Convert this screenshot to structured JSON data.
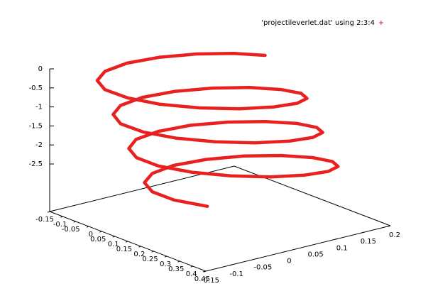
{
  "chart_data": {
    "type": "scatter3d",
    "legend": "top-right",
    "xlim": [
      -0.15,
      0.45
    ],
    "xticks": [
      -0.15,
      -0.1,
      -0.05,
      0,
      0.05,
      0.1,
      0.15,
      0.2,
      0.25,
      0.3,
      0.35,
      0.4,
      0.45
    ],
    "ylim": [
      -0.15,
      0.2
    ],
    "yticks": [
      -0.15,
      -0.1,
      -0.05,
      0,
      0.05,
      0.1,
      0.15,
      0.2
    ],
    "zlim": [
      -3.75,
      0
    ],
    "zticks": [
      0,
      -0.5,
      -1,
      -1.5,
      -2,
      -2.5
    ],
    "series": [
      {
        "name": "'projectileverlet.dat' using 2:3:4",
        "color": "#e82020",
        "x": [
          -0.001,
          -0.072,
          -0.136,
          -0.184,
          -0.208,
          -0.203,
          -0.17,
          -0.114,
          -0.042,
          0.035,
          0.105,
          0.159,
          0.188,
          0.189,
          0.162,
          0.111,
          0.045,
          -0.026,
          -0.09,
          -0.138,
          -0.162,
          -0.157,
          -0.125,
          -0.068,
          0.004,
          0.08,
          0.15,
          0.204,
          0.234,
          0.235,
          0.208,
          0.157,
          0.091,
          0.02,
          -0.045,
          -0.093,
          -0.116,
          -0.112,
          -0.079,
          -0.023,
          0.049,
          0.126,
          0.196,
          0.25,
          0.279,
          0.28,
          0.253,
          0.203,
          0.137,
          0.066,
          0.001,
          -0.047,
          -0.071,
          -0.066,
          -0.033,
          0.023,
          0.095,
          0.172
        ],
        "y": [
          0.185,
          0.161,
          0.122,
          0.074,
          0.025,
          -0.019,
          -0.05,
          -0.063,
          -0.056,
          -0.032,
          0.008,
          0.057,
          0.108,
          0.152,
          0.184,
          0.198,
          0.192,
          0.168,
          0.129,
          0.081,
          0.032,
          -0.012,
          -0.042,
          -0.056,
          -0.049,
          -0.024,
          0.016,
          0.064,
          0.115,
          0.159,
          0.191,
          0.205,
          0.2,
          0.175,
          0.136,
          0.089,
          0.039,
          -0.005,
          -0.035,
          -0.048,
          -0.042,
          -0.017,
          0.023,
          0.071,
          0.122,
          0.166,
          0.198,
          0.212,
          0.207,
          0.183,
          0.144,
          0.096,
          0.046,
          0.003,
          -0.028,
          -0.041,
          -0.035,
          -0.01
        ],
        "z": [
          -0.4,
          -0.45,
          -0.5,
          -0.55,
          -0.6,
          -0.65,
          -0.7,
          -0.75,
          -0.8,
          -0.85,
          -0.9,
          -0.95,
          -1.0,
          -1.05,
          -1.1,
          -1.15,
          -1.2,
          -1.25,
          -1.3,
          -1.35,
          -1.4,
          -1.45,
          -1.5,
          -1.55,
          -1.6,
          -1.65,
          -1.7,
          -1.75,
          -1.8,
          -1.85,
          -1.9,
          -1.95,
          -2.0,
          -2.05,
          -2.1,
          -2.15,
          -2.2,
          -2.25,
          -2.3,
          -2.35,
          -2.4,
          -2.45,
          -2.5,
          -2.55,
          -2.6,
          -2.65,
          -2.7,
          -2.75,
          -2.8,
          -2.85,
          -2.9,
          -2.95,
          -3.0,
          -3.05,
          -3.1,
          -3.15,
          -3.2,
          -3.25
        ]
      }
    ]
  }
}
